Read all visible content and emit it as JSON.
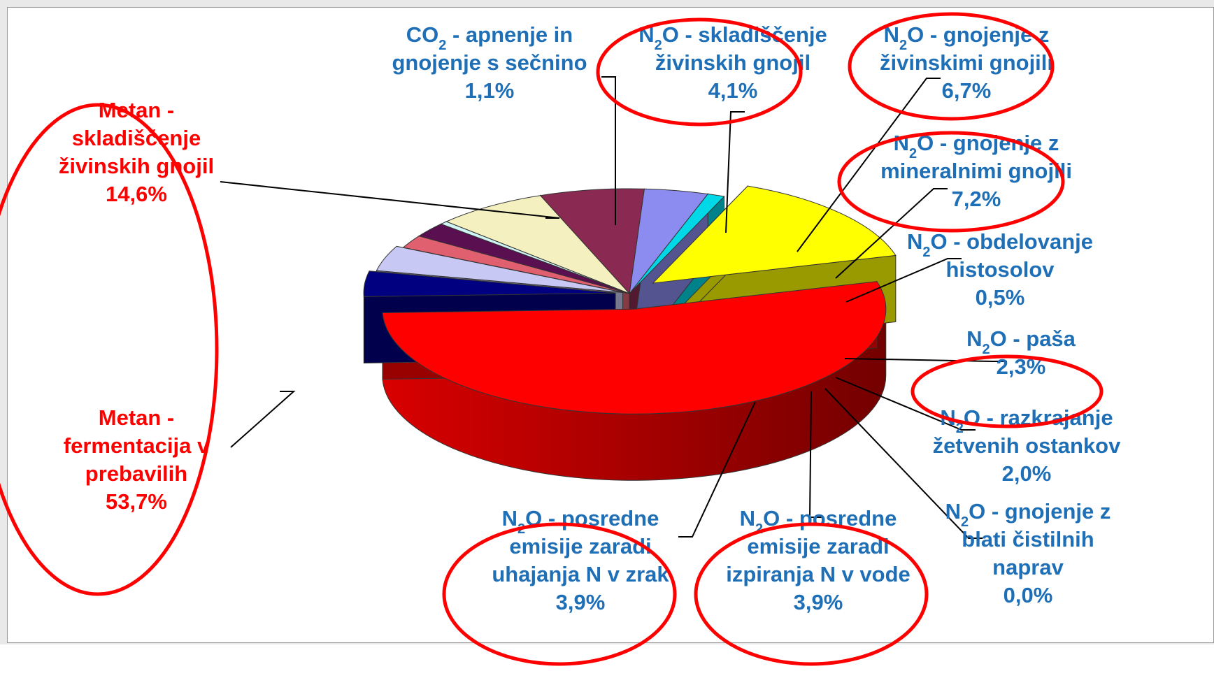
{
  "chart_data": {
    "type": "pie",
    "title": "",
    "slices": [
      {
        "label": [
          "Metan -",
          "fermentacija v",
          "prebavilih",
          "53,7%"
        ],
        "value": 53.7,
        "color": "#ff0000",
        "text_color": "#ff0000"
      },
      {
        "label": [
          "Metan -",
          "skladiščenje",
          "živinskih gnojil",
          "14,6%"
        ],
        "value": 14.6,
        "color": "#ffff00",
        "text_color": "#ff0000"
      },
      {
        "label": [
          "CO2 - apnenje in",
          "gnojenje s sečnino",
          "1,1%"
        ],
        "value": 1.1,
        "color": "#00d8e8",
        "text_color": "#1f6fb7"
      },
      {
        "label": [
          "N2O - skladiščenje",
          "živinskih gnojil",
          "4,1%"
        ],
        "value": 4.1,
        "color": "#8c8cf0",
        "text_color": "#1f6fb7"
      },
      {
        "label": [
          "N2O - gnojenje z",
          "živinskimi gnojili",
          "6,7%"
        ],
        "value": 6.7,
        "color": "#8a2a52",
        "text_color": "#1f6fb7"
      },
      {
        "label": [
          "N2O - gnojenje z",
          "mineralnimi gnojili",
          "7,2%"
        ],
        "value": 7.2,
        "color": "#f4f0c0",
        "text_color": "#1f6fb7"
      },
      {
        "label": [
          "N2O - obdelovanje",
          "histosolov",
          "0,5%"
        ],
        "value": 0.5,
        "color": "#d0f4f4",
        "text_color": "#1f6fb7"
      },
      {
        "label": [
          "N2O - paša",
          "2,3%"
        ],
        "value": 2.3,
        "color": "#5a1050",
        "text_color": "#1f6fb7"
      },
      {
        "label": [
          "N2O - razkrajanje",
          "žetvenih ostankov",
          "2,0%"
        ],
        "value": 2.0,
        "color": "#e06070",
        "text_color": "#1f6fb7"
      },
      {
        "label": [
          "N2O - gnojenje z",
          "blati čistilnih",
          "naprav",
          "0,0%"
        ],
        "value": 0.0,
        "color": "#2050c0",
        "text_color": "#1f6fb7"
      },
      {
        "label": [
          "N2O - posredne",
          "emisije zaradi",
          "izpiranja N v vode",
          "3,9%"
        ],
        "value": 3.9,
        "color": "#c8c8f4",
        "text_color": "#1f6fb7"
      },
      {
        "label": [
          "N2O - posredne",
          "emisije zaradi",
          "uhajanja N v zrak",
          "3,9%"
        ],
        "value": 3.9,
        "color": "#000080",
        "text_color": "#1f6fb7"
      }
    ],
    "legend": "none",
    "annotations": "red hand-drawn ellipses around selected labels"
  },
  "colors": {
    "red_label": "#ff0000",
    "blue_label": "#1f6fb7",
    "annotation_ellipse": "#ff0000"
  }
}
